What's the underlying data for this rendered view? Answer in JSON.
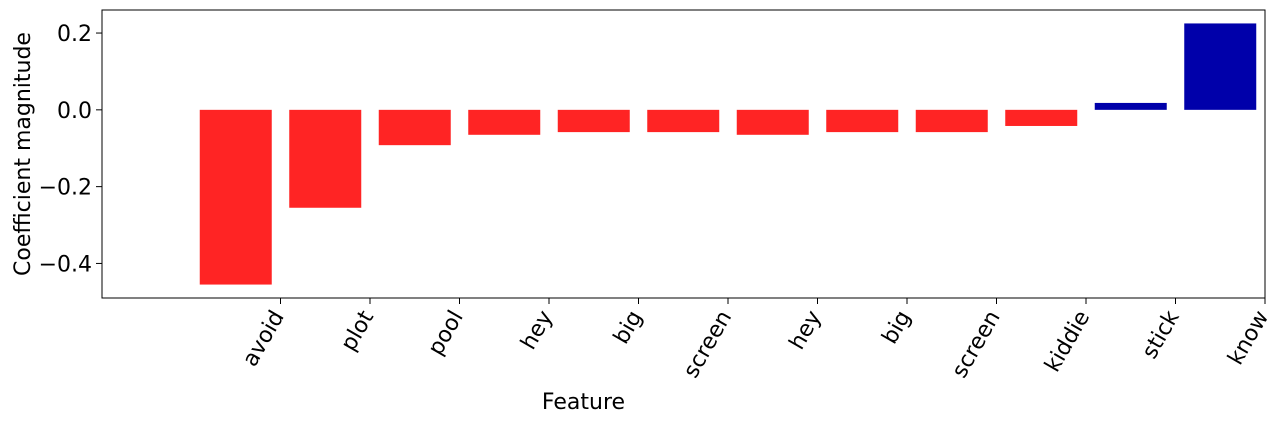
{
  "chart_data": {
    "type": "bar",
    "title": "",
    "xlabel": "Feature",
    "ylabel": "Coefficient magnitude",
    "ylim": [
      -0.49,
      0.26
    ],
    "yticks": [
      -0.4,
      -0.2,
      0.0,
      0.2
    ],
    "ytick_labels": [
      "−0.4",
      "−0.2",
      "0.0",
      "0.2"
    ],
    "xtick_labels": [
      "avoid",
      "plot",
      "pool",
      "hey",
      "big",
      "screen",
      "hey",
      "big",
      "screen",
      "kiddie",
      "stick",
      "know"
    ],
    "bar_values": [
      -0.455,
      -0.255,
      -0.092,
      -0.065,
      -0.058,
      -0.058,
      -0.065,
      -0.058,
      -0.058,
      -0.042,
      0.018,
      0.225
    ],
    "colors": {
      "negative": "#ff2424",
      "positive": "#0000aa"
    },
    "grid": false,
    "legend": "none"
  }
}
